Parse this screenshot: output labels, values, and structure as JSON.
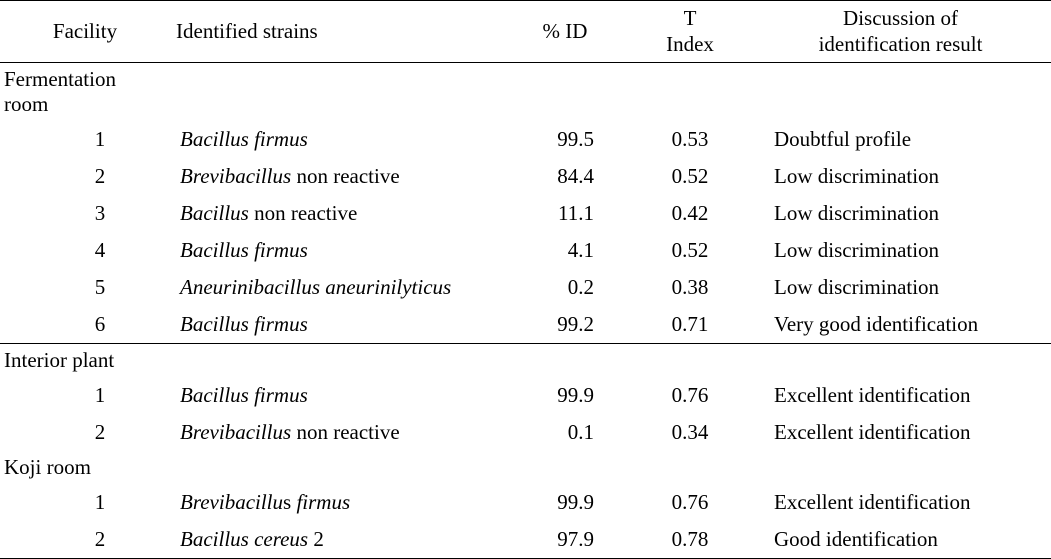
{
  "table": {
    "headers": {
      "facility": "Facility",
      "strains": "Identified strains",
      "pctid": "% ID",
      "tindex_line1": "T",
      "tindex_line2": "Index",
      "discussion_line1": "Discussion of",
      "discussion_line2": "identification result"
    },
    "sections": [
      {
        "label_line1": "Fermentation",
        "label_line2": "room",
        "sep_above": false,
        "rows": [
          {
            "idx": "1",
            "strain_italic": "Bacillus firmus",
            "strain_plain": "",
            "pctid": "99.5",
            "tindex": "0.53",
            "disc": "Doubtful profile"
          },
          {
            "idx": "2",
            "strain_italic": "Brevibacillus",
            "strain_plain": " non reactive",
            "pctid": "84.4",
            "tindex": "0.52",
            "disc": "Low discrimination"
          },
          {
            "idx": "3",
            "strain_italic": "Bacillus",
            "strain_plain": " non reactive",
            "pctid": "11.1",
            "tindex": "0.42",
            "disc": "Low discrimination"
          },
          {
            "idx": "4",
            "strain_italic": "Bacillus firmus",
            "strain_plain": "",
            "pctid": "4.1",
            "tindex": "0.52",
            "disc": "Low discrimination"
          },
          {
            "idx": "5",
            "strain_italic": "Aneurinibacillus aneurinilyticus",
            "strain_plain": "",
            "pctid": "0.2",
            "tindex": "0.38",
            "disc": "Low discrimination"
          },
          {
            "idx": "6",
            "strain_italic": "Bacillus firmus",
            "strain_plain": "",
            "pctid": "99.2",
            "tindex": "0.71",
            "disc": "Very good identification"
          }
        ]
      },
      {
        "label_line1": "Interior plant",
        "label_line2": "",
        "sep_above": true,
        "rows": [
          {
            "idx": "1",
            "strain_italic": "Bacillus firmus",
            "strain_plain": "",
            "pctid": "99.9",
            "tindex": "0.76",
            "disc": "Excellent identification"
          },
          {
            "idx": "2",
            "strain_italic": "Brevibacillus",
            "strain_plain": " non reactive",
            "pctid": "0.1",
            "tindex": "0.34",
            "disc": "Excellent identification"
          }
        ]
      },
      {
        "label_line1": "Koji room",
        "label_line2": "",
        "sep_above": false,
        "rows": [
          {
            "idx": "1",
            "strain_italic": "Brevibacillu",
            "strain_plain_mid": "s",
            "strain_italic_tail": " firmus",
            "pctid": "99.9",
            "tindex": "0.76",
            "disc": "Excellent identification"
          },
          {
            "idx": "2",
            "strain_italic": "Bacillus cereus",
            "strain_plain": " 2",
            "pctid": "97.9",
            "tindex": "0.78",
            "disc": "Good identification"
          }
        ]
      }
    ]
  }
}
